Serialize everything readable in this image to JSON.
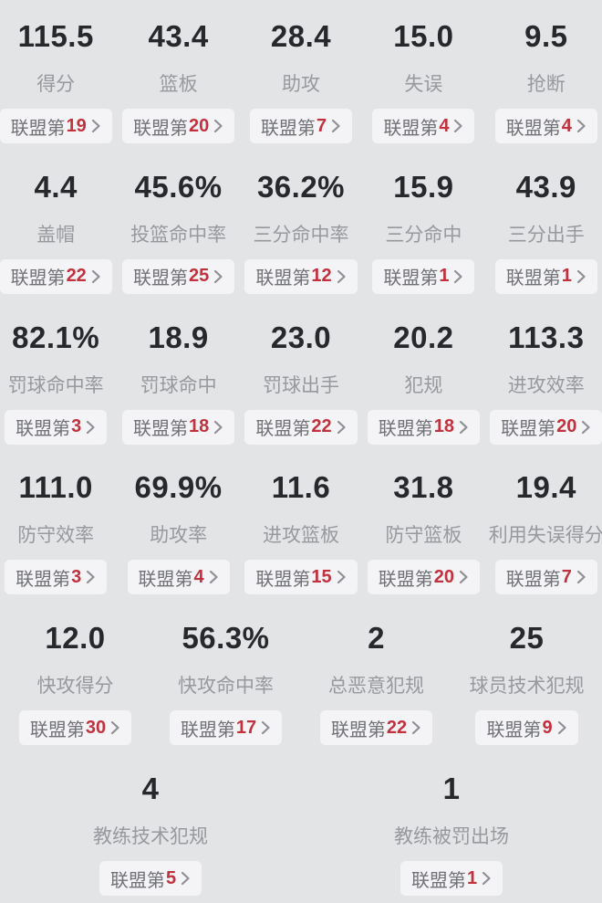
{
  "colors": {
    "page_background": "#e3e4e6",
    "value_text": "#27282c",
    "label_text": "#98999e",
    "badge_background": "#f4f4f6",
    "badge_text": "#717277",
    "rank_red": "#c2313e",
    "chevron_gray": "#8f9095"
  },
  "rank_prefix": "联盟第",
  "rows": [
    {
      "items": [
        {
          "value": "115.5",
          "label": "得分",
          "rank": "19"
        },
        {
          "value": "43.4",
          "label": "篮板",
          "rank": "20"
        },
        {
          "value": "28.4",
          "label": "助攻",
          "rank": "7"
        },
        {
          "value": "15.0",
          "label": "失误",
          "rank": "4"
        },
        {
          "value": "9.5",
          "label": "抢断",
          "rank": "4"
        }
      ]
    },
    {
      "items": [
        {
          "value": "4.4",
          "label": "盖帽",
          "rank": "22"
        },
        {
          "value": "45.6%",
          "label": "投篮命中率",
          "rank": "25"
        },
        {
          "value": "36.2%",
          "label": "三分命中率",
          "rank": "12"
        },
        {
          "value": "15.9",
          "label": "三分命中",
          "rank": "1"
        },
        {
          "value": "43.9",
          "label": "三分出手",
          "rank": "1"
        }
      ]
    },
    {
      "items": [
        {
          "value": "82.1%",
          "label": "罚球命中率",
          "rank": "3"
        },
        {
          "value": "18.9",
          "label": "罚球命中",
          "rank": "18"
        },
        {
          "value": "23.0",
          "label": "罚球出手",
          "rank": "22"
        },
        {
          "value": "20.2",
          "label": "犯规",
          "rank": "18"
        },
        {
          "value": "113.3",
          "label": "进攻效率",
          "rank": "20"
        }
      ]
    },
    {
      "items": [
        {
          "value": "111.0",
          "label": "防守效率",
          "rank": "3"
        },
        {
          "value": "69.9%",
          "label": "助攻率",
          "rank": "4"
        },
        {
          "value": "11.6",
          "label": "进攻篮板",
          "rank": "15"
        },
        {
          "value": "31.8",
          "label": "防守篮板",
          "rank": "20"
        },
        {
          "value": "19.4",
          "label": "利用失误得分",
          "rank": "7"
        }
      ]
    },
    {
      "items": [
        {
          "value": "12.0",
          "label": "快攻得分",
          "rank": "30"
        },
        {
          "value": "56.3%",
          "label": "快攻命中率",
          "rank": "17"
        },
        {
          "value": "2",
          "label": "总恶意犯规",
          "rank": "22"
        },
        {
          "value": "25",
          "label": "球员技术犯规",
          "rank": "9"
        }
      ]
    },
    {
      "items": [
        {
          "value": "4",
          "label": "教练技术犯规",
          "rank": "5"
        },
        {
          "value": "1",
          "label": "教练被罚出场",
          "rank": "1"
        }
      ]
    }
  ]
}
